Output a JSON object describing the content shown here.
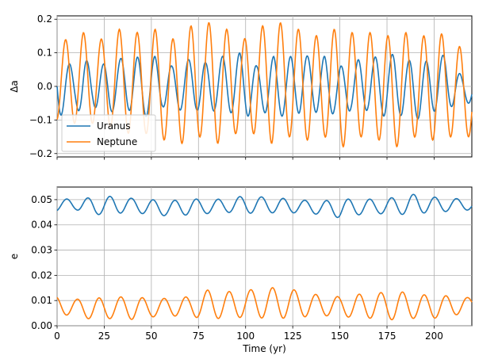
{
  "chart_data": [
    {
      "type": "line",
      "ylabel": "Δa",
      "xlabel": "",
      "xlim": [
        0,
        220
      ],
      "ylim": [
        -0.21,
        0.21
      ],
      "yticks": [
        -0.2,
        -0.1,
        0.0,
        0.1,
        0.2
      ],
      "ytick_labels": [
        "−0.2",
        "−0.1",
        "0.0",
        "0.1",
        "0.2"
      ],
      "xticks": [
        0,
        25,
        50,
        75,
        100,
        125,
        150,
        175,
        200
      ],
      "grid": true,
      "legend": {
        "placement": "lower-left",
        "entries": [
          "Uranus",
          "Neptune"
        ]
      },
      "series": [
        {
          "name": "Uranus",
          "color": "#1f77b4",
          "model": {
            "period_yr": 9.0,
            "phase": 1.5708,
            "mean": 0.0,
            "amp_max": [
              0.0,
              0.1,
              4.5,
              0.08,
              9.5,
              0.05,
              14,
              0.08,
              19,
              0.07,
              23,
              0.07,
              28,
              0.06,
              33,
              0.08,
              38,
              0.1,
              42,
              0.09,
              47,
              0.07,
              52,
              0.09,
              56,
              0.08,
              61,
              0.06,
              65,
              0.08,
              70,
              0.08,
              74,
              0.09,
              79,
              0.07,
              84,
              0.08,
              88,
              0.09,
              93,
              0.09,
              97,
              0.1,
              102,
              0.08,
              106,
              0.06,
              111,
              0.07,
              115,
              0.09,
              120,
              0.07,
              124,
              0.09,
              129,
              0.1,
              133,
              0.09,
              138,
              0.08,
              142,
              0.09,
              147,
              0.07,
              151,
              0.06,
              156,
              0.07,
              160,
              0.08,
              165,
              0.08,
              170,
              0.09,
              174,
              0.08,
              179,
              0.1,
              183,
              0.07,
              188,
              0.08,
              192,
              0.06,
              197,
              0.08,
              201,
              0.1,
              206,
              0.09,
              210,
              0.06,
              215,
              0.03,
              220,
              0.03
            ],
            "amp_min": [
              0.0,
              -0.1,
              4.5,
              -0.07,
              9.5,
              -0.06,
              14,
              -0.09,
              19,
              -0.06,
              23,
              -0.07,
              28,
              -0.08,
              33,
              -0.06,
              38,
              -0.07,
              42,
              -0.09,
              47,
              -0.09,
              52,
              -0.08,
              56,
              -0.06,
              61,
              -0.08,
              65,
              -0.07,
              70,
              -0.08,
              74,
              -0.07,
              79,
              -0.09,
              84,
              -0.07,
              88,
              -0.07,
              93,
              -0.08,
              97,
              -0.08,
              102,
              -0.09,
              106,
              -0.07,
              111,
              -0.08,
              115,
              -0.08,
              120,
              -0.09,
              124,
              -0.08,
              129,
              -0.08,
              133,
              -0.06,
              138,
              -0.08,
              142,
              -0.09,
              147,
              -0.08,
              151,
              -0.09,
              156,
              -0.07,
              160,
              -0.08,
              165,
              -0.07,
              170,
              -0.08,
              174,
              -0.09,
              179,
              -0.07,
              183,
              -0.09,
              188,
              -0.08,
              192,
              -0.1,
              197,
              -0.09,
              201,
              -0.07,
              206,
              -0.06,
              210,
              -0.06,
              215,
              -0.05,
              220,
              -0.05
            ]
          }
        },
        {
          "name": "Neptune",
          "color": "#ff7f0e",
          "model": {
            "period_yr": 9.5,
            "phase": 3.3,
            "mean": 0.0,
            "amp_max": [
              0,
              0.13,
              5,
              0.14,
              14,
              0.16,
              24,
              0.14,
              33,
              0.17,
              43,
              0.16,
              52,
              0.17,
              62,
              0.14,
              71,
              0.18,
              81,
              0.19,
              90,
              0.17,
              99,
              0.14,
              109,
              0.18,
              118,
              0.19,
              128,
              0.17,
              137,
              0.15,
              147,
              0.17,
              156,
              0.16,
              166,
              0.16,
              176,
              0.15,
              185,
              0.16,
              194,
              0.15,
              203,
              0.16,
              213,
              0.12,
              220,
              0.1
            ],
            "amp_min": [
              0,
              -0.1,
              9,
              -0.11,
              19,
              -0.11,
              28,
              -0.12,
              38,
              -0.14,
              47,
              -0.14,
              57,
              -0.16,
              66,
              -0.17,
              76,
              -0.15,
              85,
              -0.17,
              95,
              -0.14,
              104,
              -0.14,
              114,
              -0.17,
              123,
              -0.15,
              133,
              -0.16,
              142,
              -0.15,
              152,
              -0.18,
              161,
              -0.15,
              171,
              -0.16,
              180,
              -0.18,
              190,
              -0.15,
              199,
              -0.16,
              209,
              -0.15,
              218,
              -0.15,
              220,
              -0.15
            ]
          }
        }
      ]
    },
    {
      "type": "line",
      "ylabel": "e",
      "xlabel": "Time (yr)",
      "xlim": [
        0,
        220
      ],
      "ylim": [
        0.0,
        0.055
      ],
      "yticks": [
        0.0,
        0.01,
        0.02,
        0.03,
        0.04,
        0.05
      ],
      "ytick_labels": [
        "0.00",
        "0.01",
        "0.02",
        "0.03",
        "0.04",
        "0.05"
      ],
      "xticks": [
        0,
        25,
        50,
        75,
        100,
        125,
        150,
        175,
        200
      ],
      "xtick_labels": [
        "0",
        "25",
        "50",
        "75",
        "100",
        "125",
        "150",
        "175",
        "200"
      ],
      "grid": true,
      "series": [
        {
          "name": "Uranus",
          "color": "#1f77b4",
          "model": {
            "period_yr": 11.5,
            "phase": 3.6,
            "mean": 0.0475,
            "amp_max": [
              0,
              0.0495,
              10,
              0.051,
              20,
              0.0505,
              30,
              0.0515,
              40,
              0.0505,
              50,
              0.05,
              60,
              0.0495,
              70,
              0.0505,
              80,
              0.0498,
              90,
              0.0505,
              100,
              0.0515,
              110,
              0.051,
              120,
              0.0505,
              130,
              0.0498,
              140,
              0.0495,
              150,
              0.05,
              160,
              0.0505,
              170,
              0.05,
              180,
              0.051,
              190,
              0.0522,
              200,
              0.051,
              210,
              0.0505,
              220,
              0.05
            ],
            "amp_min": [
              0,
              0.0455,
              10,
              0.046,
              20,
              0.044,
              30,
              0.0445,
              40,
              0.045,
              50,
              0.044,
              60,
              0.0435,
              70,
              0.044,
              80,
              0.0445,
              90,
              0.045,
              100,
              0.0445,
              110,
              0.045,
              120,
              0.0445,
              130,
              0.045,
              140,
              0.044,
              150,
              0.0428,
              160,
              0.044,
              170,
              0.0445,
              180,
              0.044,
              190,
              0.0445,
              200,
              0.045,
              210,
              0.0455,
              220,
              0.046
            ]
          }
        },
        {
          "name": "Neptune",
          "color": "#ff7f0e",
          "model": {
            "period_yr": 11.5,
            "phase": 0.4,
            "mean": 0.007,
            "amp_max": [
              0,
              0.0115,
              10,
              0.0105,
              20,
              0.011,
              30,
              0.0112,
              40,
              0.0118,
              50,
              0.0105,
              60,
              0.011,
              70,
              0.0115,
              80,
              0.0142,
              90,
              0.0135,
              100,
              0.014,
              110,
              0.015,
              120,
              0.0152,
              130,
              0.0135,
              140,
              0.012,
              150,
              0.0115,
              160,
              0.0125,
              170,
              0.013,
              180,
              0.0138,
              190,
              0.0125,
              200,
              0.012,
              210,
              0.0118,
              220,
              0.011
            ],
            "amp_min": [
              0,
              0.0045,
              10,
              0.004,
              20,
              0.0022,
              30,
              0.003,
              40,
              0.0025,
              50,
              0.0035,
              60,
              0.004,
              70,
              0.0035,
              80,
              0.003,
              90,
              0.0028,
              100,
              0.0035,
              110,
              0.003,
              120,
              0.003,
              130,
              0.0035,
              140,
              0.004,
              150,
              0.0038,
              160,
              0.003,
              170,
              0.003,
              180,
              0.0022,
              190,
              0.003,
              200,
              0.003,
              210,
              0.004,
              220,
              0.006
            ]
          }
        }
      ]
    }
  ]
}
